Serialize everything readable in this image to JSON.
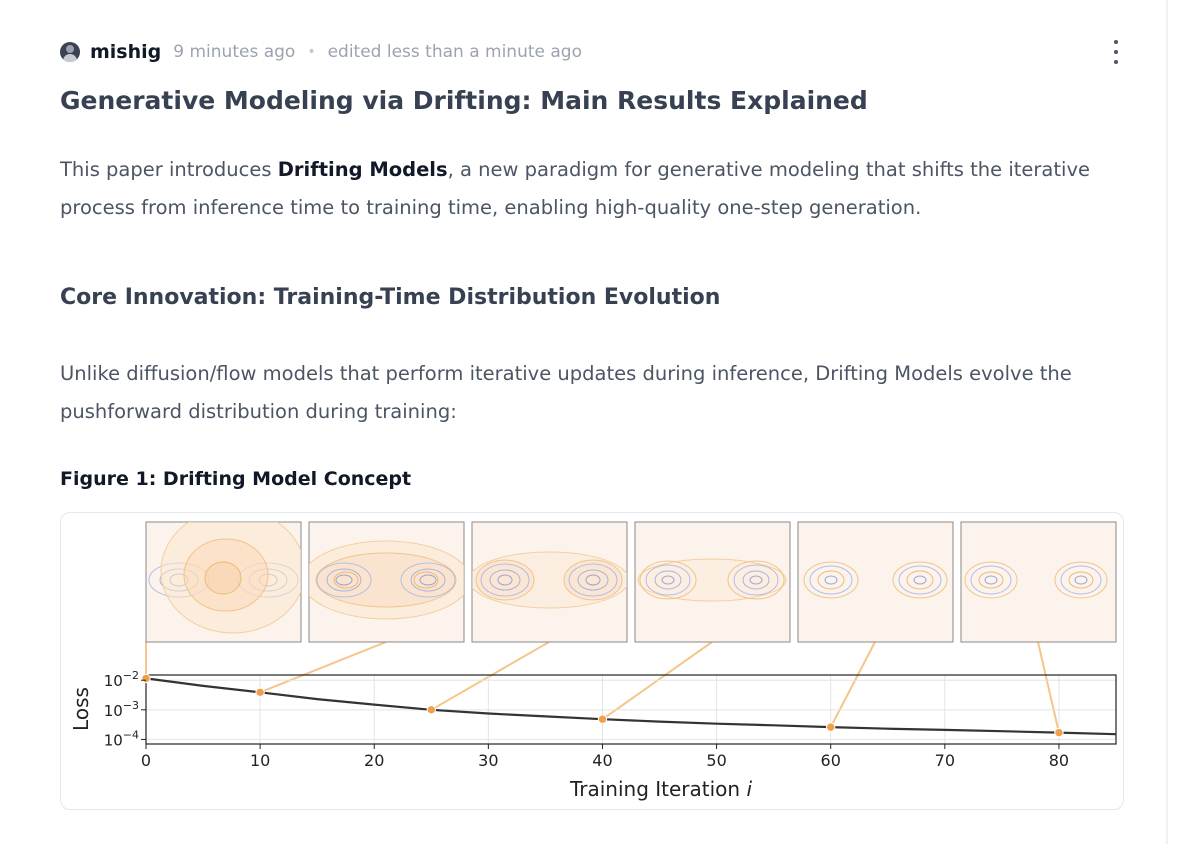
{
  "post": {
    "author": "mishig",
    "posted_time": "9 minutes ago",
    "separator": "•",
    "edited_text": "edited less than a minute ago",
    "title": "Generative Modeling via Drifting: Main Results Explained",
    "intro": {
      "before": "This paper introduces ",
      "bold": "Drifting Models",
      "after": ", a new paradigm for generative modeling that shifts the iterative process from inference time to training time, enabling high-quality one-step generation."
    },
    "section_heading": "Core Innovation: Training-Time Distribution Evolution",
    "section_text": "Unlike diffusion/flow models that perform iterative updates during inference, Drifting Models evolve the pushforward distribution during training:",
    "figure_caption": "Figure 1: Drifting Model Concept"
  },
  "colors": {
    "orange": "#f0a04a",
    "lavender": "#9aa6d6",
    "curve": "#333333"
  },
  "chart_data": {
    "type": "line",
    "xlabel": "Training Iteration i",
    "ylabel": "Loss",
    "y_scale": "log",
    "xlim": [
      0,
      85
    ],
    "ylim": [
      7e-05,
      0.015
    ],
    "x_ticks": [
      0,
      10,
      20,
      30,
      40,
      50,
      60,
      70,
      80
    ],
    "y_ticks": [
      {
        "value": 0.01,
        "base": "10",
        "exp": "−2"
      },
      {
        "value": 0.001,
        "base": "10",
        "exp": "−3"
      },
      {
        "value": 0.0001,
        "base": "10",
        "exp": "−4"
      }
    ],
    "grid": true,
    "curve": {
      "x": [
        0,
        5,
        10,
        15,
        20,
        25,
        30,
        35,
        40,
        45,
        50,
        55,
        60,
        65,
        70,
        75,
        80,
        85
      ],
      "y": [
        0.0115,
        0.0064,
        0.0039,
        0.0023,
        0.0015,
        0.001,
        0.00075,
        0.0006,
        0.00048,
        0.0004,
        0.00034,
        0.0003,
        0.00026,
        0.00023,
        0.00021,
        0.00019,
        0.00017,
        0.00015
      ]
    },
    "snapshot_points": [
      {
        "x": 0,
        "y": 0.0115
      },
      {
        "x": 10,
        "y": 0.0039
      },
      {
        "x": 25,
        "y": 0.001
      },
      {
        "x": 40,
        "y": 0.00048
      },
      {
        "x": 60,
        "y": 0.00026
      },
      {
        "x": 80,
        "y": 0.00017
      }
    ]
  }
}
